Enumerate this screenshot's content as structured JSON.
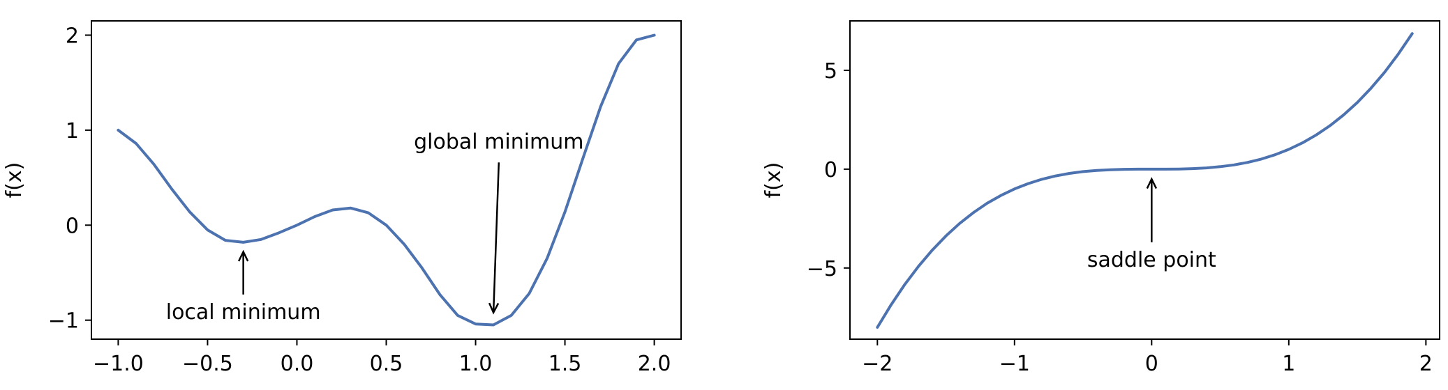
{
  "chart_data": [
    {
      "type": "line",
      "title": "",
      "xlabel": "",
      "ylabel": "f(x)",
      "xlim": [
        -1.15,
        2.15
      ],
      "ylim": [
        -1.2,
        2.15
      ],
      "xticks": [
        -1.0,
        -0.5,
        0.0,
        0.5,
        1.0,
        1.5,
        2.0
      ],
      "xtick_labels": [
        "−1.0",
        "−0.5",
        "0.0",
        "0.5",
        "1.0",
        "1.5",
        "2.0"
      ],
      "yticks": [
        -1,
        0,
        1,
        2
      ],
      "ytick_labels": [
        "−1",
        "0",
        "1",
        "2"
      ],
      "grid": false,
      "series": [
        {
          "color": "#4c72b0",
          "x": [
            -1.0,
            -0.9,
            -0.8,
            -0.7,
            -0.6,
            -0.5,
            -0.4,
            -0.3,
            -0.2,
            -0.1,
            0.0,
            0.1,
            0.2,
            0.3,
            0.4,
            0.5,
            0.6,
            0.7,
            0.8,
            0.9,
            1.0,
            1.1,
            1.2,
            1.3,
            1.4,
            1.5,
            1.6,
            1.7,
            1.8,
            1.9,
            2.0
          ],
          "y": [
            1.0,
            0.86,
            0.64,
            0.38,
            0.14,
            -0.05,
            -0.16,
            -0.18,
            -0.15,
            -0.08,
            0.0,
            0.09,
            0.16,
            0.18,
            0.13,
            0.0,
            -0.2,
            -0.45,
            -0.73,
            -0.95,
            -1.04,
            -1.05,
            -0.95,
            -0.72,
            -0.35,
            0.14,
            0.7,
            1.25,
            1.7,
            1.95,
            2.0
          ]
        }
      ],
      "annotations": [
        {
          "text": "local minimum",
          "xy": [
            -0.3,
            -0.28
          ],
          "xytext": [
            -0.3,
            -0.73
          ]
        },
        {
          "text": "global minimum",
          "xy": [
            1.1,
            -0.92
          ],
          "xytext": [
            1.13,
            0.66
          ]
        }
      ]
    },
    {
      "type": "line",
      "title": "",
      "xlabel": "",
      "ylabel": "f(x)",
      "xlim": [
        -2.2,
        2.1
      ],
      "ylim": [
        -8.6,
        7.5
      ],
      "xticks": [
        -2,
        -1,
        0,
        1,
        2
      ],
      "xtick_labels": [
        "−2",
        "−1",
        "0",
        "1",
        "2"
      ],
      "yticks": [
        -5,
        0,
        5
      ],
      "ytick_labels": [
        "−5",
        "0",
        "5"
      ],
      "grid": false,
      "series": [
        {
          "color": "#4c72b0",
          "x": [
            -2.0,
            -1.9,
            -1.8,
            -1.7,
            -1.6,
            -1.5,
            -1.4,
            -1.3,
            -1.2,
            -1.1,
            -1.0,
            -0.9,
            -0.8,
            -0.7,
            -0.6,
            -0.5,
            -0.4,
            -0.3,
            -0.2,
            -0.1,
            0.0,
            0.1,
            0.2,
            0.3,
            0.4,
            0.5,
            0.6,
            0.7,
            0.8,
            0.9,
            1.0,
            1.1,
            1.2,
            1.3,
            1.4,
            1.5,
            1.6,
            1.7,
            1.8,
            1.9
          ],
          "y": [
            -8.0,
            -6.859,
            -5.832,
            -4.913,
            -4.096,
            -3.375,
            -2.744,
            -2.197,
            -1.728,
            -1.331,
            -1.0,
            -0.729,
            -0.512,
            -0.343,
            -0.216,
            -0.125,
            -0.064,
            -0.027,
            -0.008,
            -0.001,
            0.0,
            0.001,
            0.008,
            0.027,
            0.064,
            0.125,
            0.216,
            0.343,
            0.512,
            0.729,
            1.0,
            1.331,
            1.728,
            2.197,
            2.744,
            3.375,
            4.096,
            4.913,
            5.832,
            6.859
          ]
        }
      ],
      "annotations": [
        {
          "text": "saddle point",
          "xy": [
            0.0,
            -0.5
          ],
          "xytext": [
            0.0,
            -3.7
          ]
        }
      ]
    }
  ]
}
